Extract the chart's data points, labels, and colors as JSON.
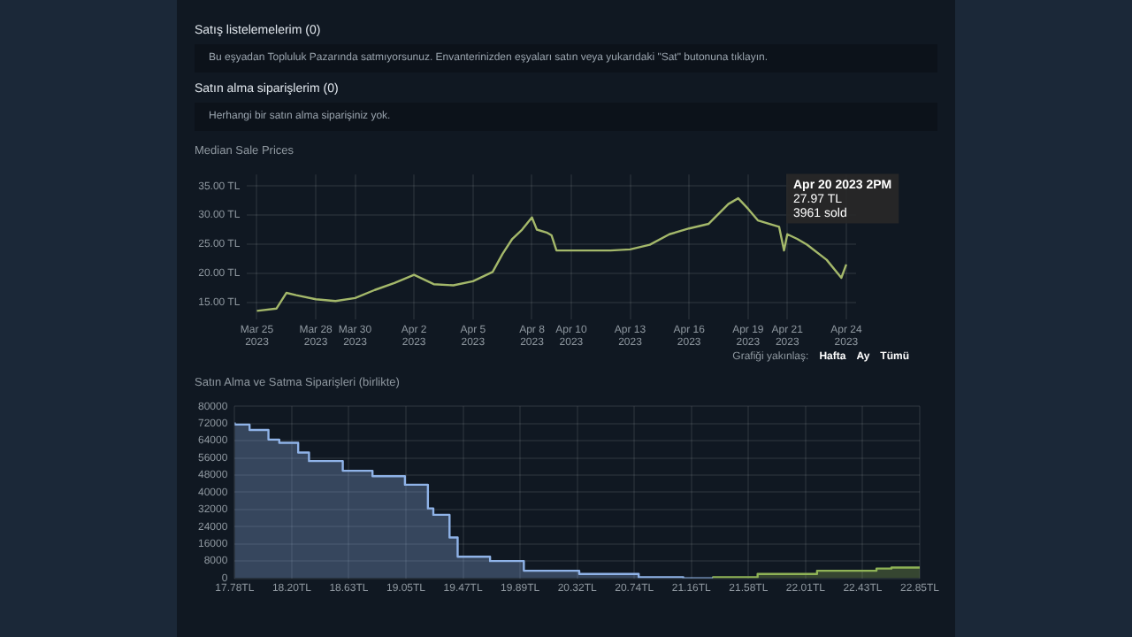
{
  "chart_data": [
    {
      "type": "other",
      "annotations": [
        "Satış listelemelerim (0)",
        "Bu eşyadan Topluluk Pazarında satmıyorsunuz. Envanterinizden eşyaları satın veya yukarıdaki \"Sat\" butonuna tıklayın.",
        "Satın alma siparişlerim (0)",
        "Herhangi bir satın alma siparişiniz yok."
      ]
    },
    {
      "type": "line",
      "title": "Median Sale Prices",
      "x": [
        "2023-03-25T00:00",
        "2023-03-26T00:00",
        "2023-03-26T12:00",
        "2023-03-27T00:00",
        "2023-03-28T00:00",
        "2023-03-29T00:00",
        "2023-03-30T00:00",
        "2023-03-31T00:00",
        "2023-04-01T00:00",
        "2023-04-02T00:00",
        "2023-04-03T00:00",
        "2023-04-04T00:00",
        "2023-04-05T00:00",
        "2023-04-06T00:00",
        "2023-04-06T12:00",
        "2023-04-07T00:00",
        "2023-04-07T12:00",
        "2023-04-08T00:00",
        "2023-04-08T06:00",
        "2023-04-08T18:00",
        "2023-04-09T00:00",
        "2023-04-09T06:00",
        "2023-04-10T00:00",
        "2023-04-11T00:00",
        "2023-04-12T00:00",
        "2023-04-13T00:00",
        "2023-04-14T00:00",
        "2023-04-15T00:00",
        "2023-04-16T00:00",
        "2023-04-17T00:00",
        "2023-04-18T00:00",
        "2023-04-18T12:00",
        "2023-04-19T00:00",
        "2023-04-19T12:00",
        "2023-04-20T14:00",
        "2023-04-20T20:00",
        "2023-04-21T00:00",
        "2023-04-21T12:00",
        "2023-04-22T00:00",
        "2023-04-23T00:00",
        "2023-04-23T18:00",
        "2023-04-24T00:00"
      ],
      "series": [
        {
          "color": "#a4b86a",
          "values": [
            13.5,
            13.9,
            16.6,
            16.2,
            15.5,
            15.2,
            15.7,
            17.1,
            18.3,
            19.7,
            18.1,
            17.9,
            18.6,
            20.2,
            23.3,
            25.9,
            27.5,
            29.6,
            27.5,
            27.0,
            26.5,
            23.9,
            23.9,
            23.9,
            23.9,
            24.1,
            24.9,
            26.7,
            27.7,
            28.5,
            31.9,
            32.9,
            31.1,
            29.1,
            27.97,
            23.9,
            26.7,
            25.9,
            24.9,
            22.3,
            19.2,
            21.5
          ]
        }
      ],
      "xlim": [
        "2023-03-24T12:00",
        "2023-04-24T12:00"
      ],
      "xticks": [
        {
          "value": "2023-03-25",
          "label": "Mar 25 2023"
        },
        {
          "value": "2023-03-28",
          "label": "Mar 28 2023"
        },
        {
          "value": "2023-03-30",
          "label": "Mar 30 2023"
        },
        {
          "value": "2023-04-02",
          "label": "Apr 2 2023"
        },
        {
          "value": "2023-04-05",
          "label": "Apr 5 2023"
        },
        {
          "value": "2023-04-08",
          "label": "Apr 8 2023"
        },
        {
          "value": "2023-04-10",
          "label": "Apr 10 2023"
        },
        {
          "value": "2023-04-13",
          "label": "Apr 13 2023"
        },
        {
          "value": "2023-04-16",
          "label": "Apr 16 2023"
        },
        {
          "value": "2023-04-19",
          "label": "Apr 19 2023"
        },
        {
          "value": "2023-04-21",
          "label": "Apr 21 2023"
        },
        {
          "value": "2023-04-24",
          "label": "Apr 24 2023"
        }
      ],
      "ylim": [
        12,
        37
      ],
      "yticks": [
        {
          "value": 15,
          "label": "15.00 TL"
        },
        {
          "value": 20,
          "label": "20.00 TL"
        },
        {
          "value": 25,
          "label": "25.00 TL"
        },
        {
          "value": 30,
          "label": "30.00 TL"
        },
        {
          "value": 35,
          "label": "35.00 TL"
        }
      ],
      "grid": true,
      "annotations": [
        {
          "text": "Apr 20 2023 2PM\n27.97 TL\n3961 sold",
          "x": "2023-04-20T14:00",
          "y": 27.97
        },
        "Grafiği yakınlaş:",
        "Hafta",
        "Ay",
        "Tümü"
      ]
    },
    {
      "type": "step",
      "title": "Satın Alma ve Satma Siparişleri (birlikte)",
      "series": [
        {
          "color": "#8fb3e8",
          "x": [
            17.78,
            17.89,
            18.03,
            18.11,
            18.25,
            18.33,
            18.58,
            18.8,
            19.04,
            19.21,
            19.25,
            19.37,
            19.43,
            19.67,
            19.92,
            20.33,
            20.77,
            21.1,
            21.32
          ],
          "values": [
            72500,
            71500,
            69000,
            64500,
            63000,
            58500,
            54500,
            50000,
            47500,
            43500,
            32500,
            29500,
            19000,
            10000,
            8000,
            3500,
            2000,
            500,
            0
          ]
        },
        {
          "color": "#8fb356",
          "x": [
            21.32,
            21.65,
            22.09,
            22.53,
            22.64,
            22.85
          ],
          "values": [
            0,
            500,
            2000,
            3500,
            4500,
            5000
          ]
        }
      ],
      "xlim": [
        17.78,
        22.85
      ],
      "xticks": [
        {
          "value": 17.78,
          "label": "17.78TL"
        },
        {
          "value": 18.2025,
          "label": "18.20TL"
        },
        {
          "value": 18.625,
          "label": "18.63TL"
        },
        {
          "value": 19.0475,
          "label": "19.05TL"
        },
        {
          "value": 19.47,
          "label": "19.47TL"
        },
        {
          "value": 19.8925,
          "label": "19.89TL"
        },
        {
          "value": 20.315,
          "label": "20.32TL"
        },
        {
          "value": 20.7375,
          "label": "20.74TL"
        },
        {
          "value": 21.16,
          "label": "21.16TL"
        },
        {
          "value": 21.5825,
          "label": "21.58TL"
        },
        {
          "value": 22.005,
          "label": "22.01TL"
        },
        {
          "value": 22.4275,
          "label": "22.43TL"
        },
        {
          "value": 22.85,
          "label": "22.85TL"
        }
      ],
      "ylim": [
        0,
        80000
      ],
      "yticks": [
        0,
        8000,
        16000,
        24000,
        32000,
        40000,
        48000,
        56000,
        64000,
        72000,
        80000
      ],
      "grid": true
    }
  ]
}
